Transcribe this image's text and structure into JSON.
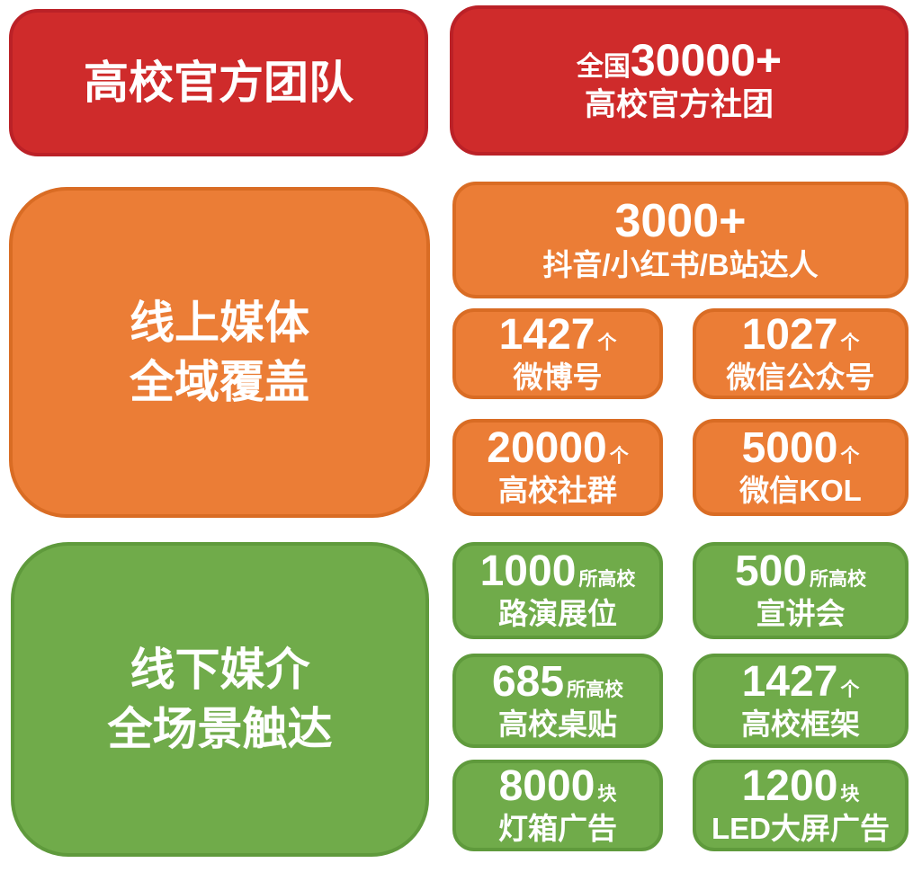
{
  "colors": {
    "background": "#FFFFFF",
    "red_fill": "#CF2B2B",
    "red_border": "#BB2127",
    "orange_fill": "#EB7D36",
    "orange_border": "#D96C24",
    "green_fill": "#70AB4A",
    "green_border": "#5F9A3C",
    "text": "#FFFFFF"
  },
  "sections": {
    "team": {
      "header": "高校官方团队",
      "stat": {
        "prefix": "全国",
        "number": "30000+",
        "label": "高校官方社团"
      }
    },
    "online": {
      "header_line1": "线上媒体",
      "header_line2": "全域覆盖",
      "wide_stat": {
        "number": "3000+",
        "label": "抖音/小红书/B站达人"
      },
      "stats": [
        {
          "number": "1427",
          "unit": "个",
          "label": "微博号"
        },
        {
          "number": "1027",
          "unit": "个",
          "label": "微信公众号"
        },
        {
          "number": "20000",
          "unit": "个",
          "label": "高校社群"
        },
        {
          "number": "5000",
          "unit": "个",
          "label": "微信KOL"
        }
      ]
    },
    "offline": {
      "header_line1": "线下媒介",
      "header_line2": "全场景触达",
      "stats": [
        {
          "number": "1000",
          "unit": "所高校",
          "label": "路演展位"
        },
        {
          "number": "500",
          "unit": "所高校",
          "label": "宣讲会"
        },
        {
          "number": "685",
          "unit": "所高校",
          "label": "高校桌贴"
        },
        {
          "number": "1427",
          "unit": "个",
          "label": "高校框架"
        },
        {
          "number": "8000",
          "unit": "块",
          "label": "灯箱广告"
        },
        {
          "number": "1200",
          "unit": "块",
          "label": "LED大屏广告"
        }
      ]
    }
  }
}
